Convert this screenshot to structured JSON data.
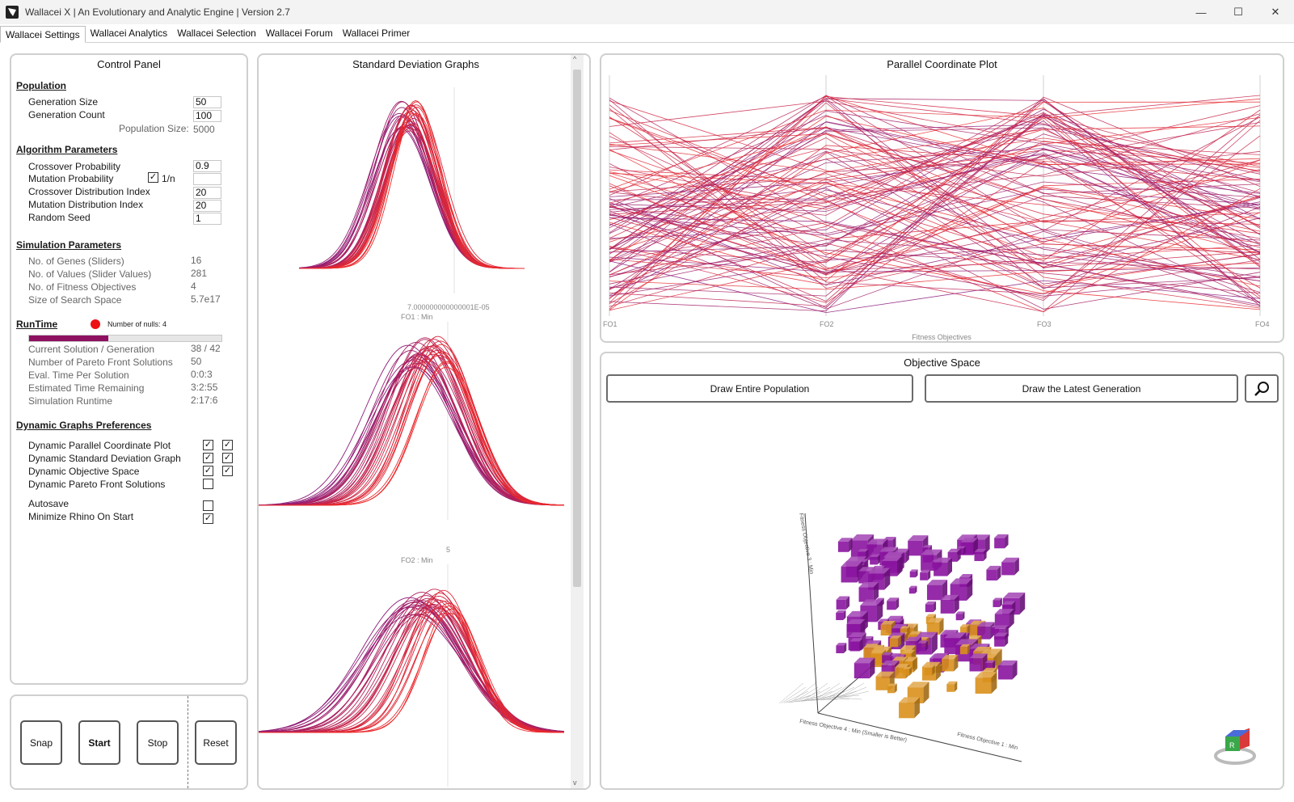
{
  "window": {
    "title": "Wallacei X  |  An Evolutionary and Analytic Engine  |  Version 2.7",
    "controls": {
      "minimize": "—",
      "maximize": "☐",
      "close": "✕"
    }
  },
  "tabs": [
    "Wallacei Settings",
    "Wallacei Analytics",
    "Wallacei Selection",
    "Wallacei Forum",
    "Wallacei Primer"
  ],
  "control_panel": {
    "title": "Control Panel",
    "population": {
      "heading": "Population",
      "generation_size_label": "Generation Size",
      "generation_size": "50",
      "generation_count_label": "Generation Count",
      "generation_count": "100",
      "population_size_label": "Population Size:",
      "population_size": "5000"
    },
    "algorithm": {
      "heading": "Algorithm Parameters",
      "crossover_probability_label": "Crossover Probability",
      "crossover_probability": "0.9",
      "mutation_probability_label": "Mutation Probability",
      "mutation_one_over_n_label": "1/n",
      "mutation_one_over_n_checked": true,
      "mutation_probability": "",
      "crossover_distribution_label": "Crossover Distribution Index",
      "crossover_distribution": "20",
      "mutation_distribution_label": "Mutation Distribution Index",
      "mutation_distribution": "20",
      "random_seed_label": "Random Seed",
      "random_seed": "1"
    },
    "simulation": {
      "heading": "Simulation Parameters",
      "rows": [
        {
          "label": "No. of Genes (Sliders)",
          "value": "16"
        },
        {
          "label": "No. of Values (Slider Values)",
          "value": "281"
        },
        {
          "label": "No. of Fitness Objectives",
          "value": "4"
        },
        {
          "label": "Size of Search Space",
          "value": "5.7e17"
        }
      ]
    },
    "runtime": {
      "heading": "RunTime",
      "nulls_label": "Number of nulls: 4",
      "progress_fraction": 0.41,
      "rows": [
        {
          "label": "Current Solution / Generation",
          "value": "38 / 42"
        },
        {
          "label": "Number of Pareto Front Solutions",
          "value": "50"
        },
        {
          "label": "Eval. Time Per Solution",
          "value": "0:0:3"
        },
        {
          "label": "Estimated Time Remaining",
          "value": "3:2:55"
        },
        {
          "label": "Simulation Runtime",
          "value": "2:17:6"
        }
      ]
    },
    "dynamic_graphs": {
      "heading": "Dynamic Graphs Preferences",
      "rows": [
        {
          "label": "Dynamic Parallel Coordinate Plot",
          "checks": [
            true,
            true
          ]
        },
        {
          "label": "Dynamic Standard Deviation Graph",
          "checks": [
            true,
            true
          ]
        },
        {
          "label": "Dynamic Objective Space",
          "checks": [
            true,
            true
          ]
        },
        {
          "label": "Dynamic Pareto Front Solutions",
          "checks": [
            false
          ]
        }
      ],
      "autosave_label": "Autosave",
      "autosave": false,
      "minimize_label": "Minimize Rhino On Start",
      "minimize": true
    }
  },
  "run_buttons": {
    "snap": "Snap",
    "start": "Start",
    "stop": "Stop",
    "reset": "Reset"
  },
  "sd_graphs": {
    "title": "Standard Deviation Graphs",
    "graph1_value": "7.000000000000001E-05",
    "graph1_label": "FO1 : Min",
    "graph2_value": "5",
    "graph2_label": "FO2 : Min"
  },
  "pcp": {
    "title": "Parallel Coordinate Plot",
    "axes": [
      "FO1",
      "FO2",
      "FO3",
      "FO4"
    ],
    "xlabel": "Fitness Objectives"
  },
  "objective_space": {
    "title": "Objective Space",
    "draw_entire_label": "Draw Entire Population",
    "draw_latest_label": "Draw the Latest Generation",
    "axis_z_label": "Fitness Objective 3 : Min",
    "axis_x_label": "Fitness Objective 1 : Min",
    "axis_y_label": "Fitness Objective 4 : Min (Smaller is Better)"
  },
  "colors": {
    "accent": "#8e1060",
    "red_line": "#ee2a2a",
    "purple_line": "#8a1a7a",
    "cube_purple": "#8a14a0",
    "cube_orange": "#d9901c"
  }
}
